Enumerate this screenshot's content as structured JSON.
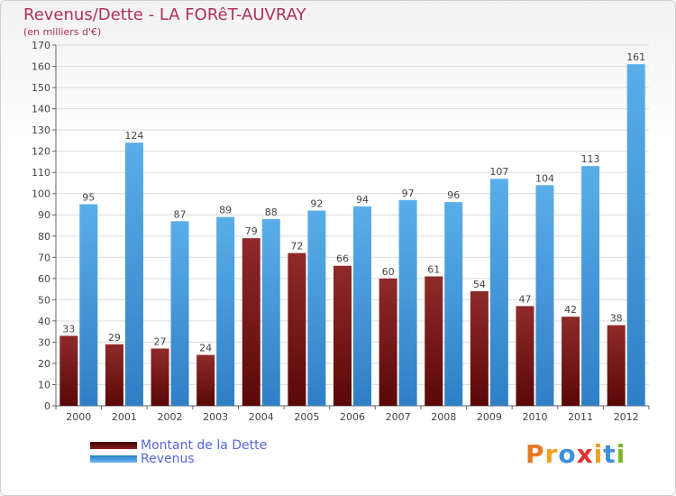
{
  "chart_data": {
    "type": "bar",
    "title": "Revenus/Dette - LA FORêT-AUVRAY",
    "subtitle": "(en milliers d'€)",
    "categories": [
      "2000",
      "2001",
      "2002",
      "2003",
      "2004",
      "2005",
      "2006",
      "2007",
      "2008",
      "2009",
      "2010",
      "2011",
      "2012"
    ],
    "series": [
      {
        "name": "Montant de la Dette",
        "color": "#7a1a1a",
        "values": [
          33,
          29,
          27,
          24,
          79,
          72,
          66,
          60,
          61,
          54,
          47,
          42,
          38
        ]
      },
      {
        "name": "Revenus",
        "color": "#4a9fe0",
        "values": [
          95,
          124,
          87,
          89,
          88,
          92,
          94,
          97,
          96,
          107,
          104,
          113,
          161
        ]
      }
    ],
    "ylim": [
      0,
      170
    ],
    "ytick_step": 10,
    "grid": true,
    "legend_position": "bottom-left"
  },
  "brand": {
    "letters": [
      "P",
      "r",
      "o",
      "x",
      "i",
      "t",
      "i"
    ],
    "colors": [
      "#e87722",
      "#f0a020",
      "#3f8fd8",
      "#e0322a",
      "#f0a020",
      "#3f8fd8",
      "#7ab72c"
    ]
  }
}
